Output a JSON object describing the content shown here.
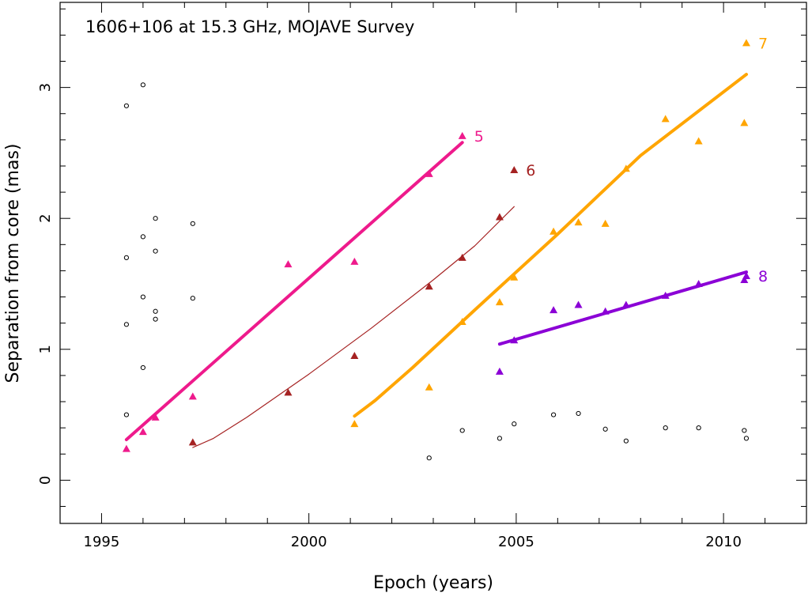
{
  "chart_data": {
    "type": "scatter",
    "title": "1606+106 at 15.3 GHz, MOJAVE Survey",
    "xlabel": "Epoch (years)",
    "ylabel": "Separation from core (mas)",
    "xlim": [
      1994.0,
      2012.0
    ],
    "ylim": [
      -0.33,
      3.65
    ],
    "x_ticks": [
      1995,
      2000,
      2005,
      2010
    ],
    "y_ticks": [
      0,
      1,
      2,
      3
    ],
    "grid": false,
    "series": [
      {
        "name": "other",
        "marker": "circle",
        "color": "#000000",
        "points": [
          [
            1995.6,
            2.86
          ],
          [
            1996.0,
            3.02
          ],
          [
            1995.6,
            1.7
          ],
          [
            1996.0,
            1.86
          ],
          [
            1996.3,
            2.0
          ],
          [
            1996.3,
            1.75
          ],
          [
            1997.2,
            1.96
          ],
          [
            1996.0,
            1.4
          ],
          [
            1996.3,
            1.29
          ],
          [
            1996.3,
            1.23
          ],
          [
            1997.2,
            1.39
          ],
          [
            1995.6,
            1.19
          ],
          [
            1996.0,
            0.86
          ],
          [
            1995.6,
            0.5
          ],
          [
            2002.9,
            0.17
          ],
          [
            2003.7,
            0.38
          ],
          [
            2004.6,
            0.32
          ],
          [
            2004.95,
            0.43
          ],
          [
            2005.9,
            0.5
          ],
          [
            2006.5,
            0.51
          ],
          [
            2007.15,
            0.39
          ],
          [
            2007.65,
            0.3
          ],
          [
            2008.6,
            0.4
          ],
          [
            2009.4,
            0.4
          ],
          [
            2010.5,
            0.38
          ],
          [
            2010.55,
            0.32
          ]
        ]
      },
      {
        "name": "5",
        "label": "5",
        "marker": "triangle",
        "color": "#ee1a8c",
        "points": [
          [
            1995.6,
            0.24
          ],
          [
            1996.0,
            0.37
          ],
          [
            1996.3,
            0.48
          ],
          [
            1997.2,
            0.64
          ],
          [
            1999.5,
            1.65
          ],
          [
            2001.1,
            1.67
          ],
          [
            2002.9,
            2.34
          ],
          [
            2003.7,
            2.63
          ]
        ],
        "fit": [
          [
            1995.6,
            0.31
          ],
          [
            2003.7,
            2.58
          ]
        ],
        "fit_width": 4
      },
      {
        "name": "6",
        "label": "6",
        "marker": "triangle",
        "color": "#a52222",
        "points": [
          [
            1997.2,
            0.29
          ],
          [
            1999.5,
            0.67
          ],
          [
            2001.1,
            0.95
          ],
          [
            2002.9,
            1.48
          ],
          [
            2003.7,
            1.7
          ],
          [
            2004.6,
            2.01
          ],
          [
            2004.95,
            2.37
          ]
        ],
        "fit": [
          [
            1997.2,
            0.25
          ],
          [
            1997.7,
            0.32
          ],
          [
            1998.5,
            0.48
          ],
          [
            2000.0,
            0.81
          ],
          [
            2001.5,
            1.16
          ],
          [
            2003.0,
            1.53
          ],
          [
            2004.0,
            1.79
          ],
          [
            2004.95,
            2.09
          ]
        ],
        "fit_width": 1.2
      },
      {
        "name": "7",
        "label": "7",
        "marker": "triangle",
        "color": "#ffa500",
        "points": [
          [
            2001.1,
            0.43
          ],
          [
            2002.9,
            0.71
          ],
          [
            2003.7,
            1.21
          ],
          [
            2004.6,
            1.36
          ],
          [
            2004.95,
            1.55
          ],
          [
            2005.9,
            1.9
          ],
          [
            2006.5,
            1.97
          ],
          [
            2007.15,
            1.96
          ],
          [
            2007.65,
            2.38
          ],
          [
            2008.6,
            2.76
          ],
          [
            2009.4,
            2.59
          ],
          [
            2010.5,
            2.73
          ],
          [
            2010.55,
            3.34
          ]
        ],
        "fit": [
          [
            2001.1,
            0.49
          ],
          [
            2001.6,
            0.61
          ],
          [
            2002.5,
            0.86
          ],
          [
            2004.0,
            1.3
          ],
          [
            2006.0,
            1.88
          ],
          [
            2008.0,
            2.48
          ],
          [
            2010.55,
            3.1
          ]
        ],
        "fit_width": 4
      },
      {
        "name": "8",
        "label": "8",
        "marker": "triangle",
        "color": "#8b00d6",
        "points": [
          [
            2004.6,
            0.83
          ],
          [
            2004.95,
            1.07
          ],
          [
            2005.9,
            1.3
          ],
          [
            2006.5,
            1.34
          ],
          [
            2007.15,
            1.29
          ],
          [
            2007.65,
            1.34
          ],
          [
            2008.6,
            1.41
          ],
          [
            2009.4,
            1.5
          ],
          [
            2010.5,
            1.53
          ],
          [
            2010.55,
            1.56
          ]
        ],
        "fit": [
          [
            2004.6,
            1.04
          ],
          [
            2010.55,
            1.59
          ]
        ],
        "fit_width": 4
      }
    ]
  }
}
